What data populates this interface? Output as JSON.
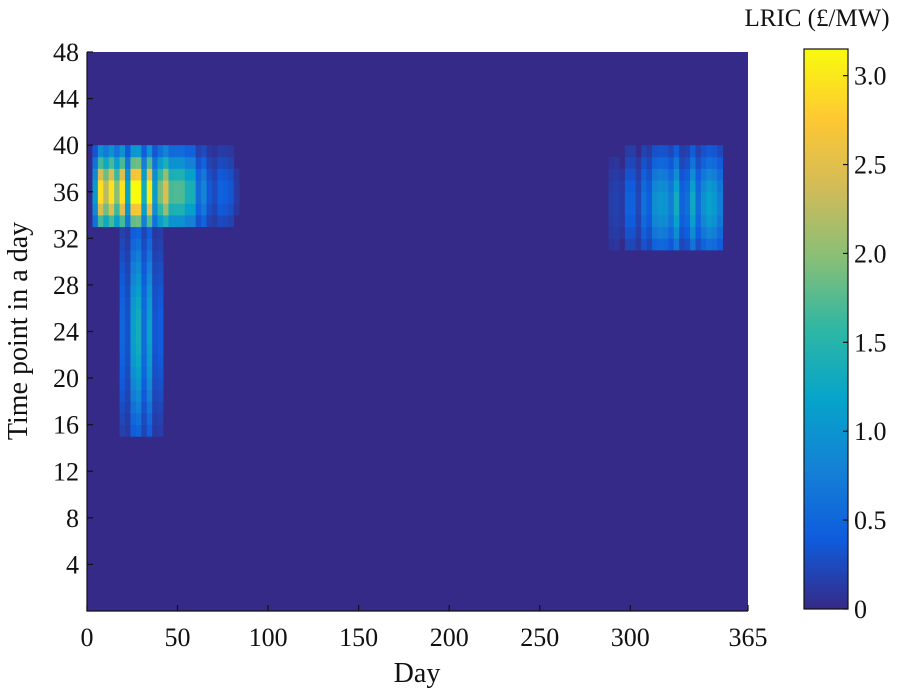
{
  "chart_data": {
    "type": "heatmap",
    "title": "",
    "xlabel": "Day",
    "ylabel": "Time point in a day",
    "xlim": [
      0,
      365
    ],
    "ylim": [
      0,
      48
    ],
    "x_ticks": [
      0,
      50,
      100,
      150,
      200,
      250,
      300,
      365
    ],
    "y_ticks": [
      4,
      8,
      12,
      16,
      20,
      24,
      28,
      32,
      36,
      40,
      44,
      48
    ],
    "colorbar": {
      "label": "LRIC (£/MW)",
      "range": [
        0,
        3.15
      ],
      "ticks": [
        0,
        0.5,
        1.0,
        1.5,
        2.0,
        2.5,
        3.0
      ],
      "tick_labels": [
        "0",
        "0.5",
        "1.0",
        "1.5",
        "2.0",
        "2.5",
        "3.0"
      ],
      "colormap": "parula",
      "stops": [
        "#352a87",
        "#0f5cdd",
        "#1481d6",
        "#06a4ca",
        "#2eb7a4",
        "#87bf77",
        "#d1bb59",
        "#fec832",
        "#f9fb0e"
      ]
    },
    "background_value": 0,
    "hotspots": [
      {
        "day_range": [
          2,
          85
        ],
        "time_range": [
          33,
          40
        ],
        "peak_day": 22,
        "peak_time": 36,
        "peak_value": 3.0
      },
      {
        "day_range": [
          18,
          42
        ],
        "time_range": [
          15,
          33
        ],
        "peak_day": 30,
        "peak_time": 24,
        "peak_value": 1.2
      },
      {
        "day_range": [
          288,
          350
        ],
        "time_range": [
          31,
          40
        ],
        "peak_day": 330,
        "peak_time": 35,
        "peak_value": 1.3
      }
    ]
  }
}
